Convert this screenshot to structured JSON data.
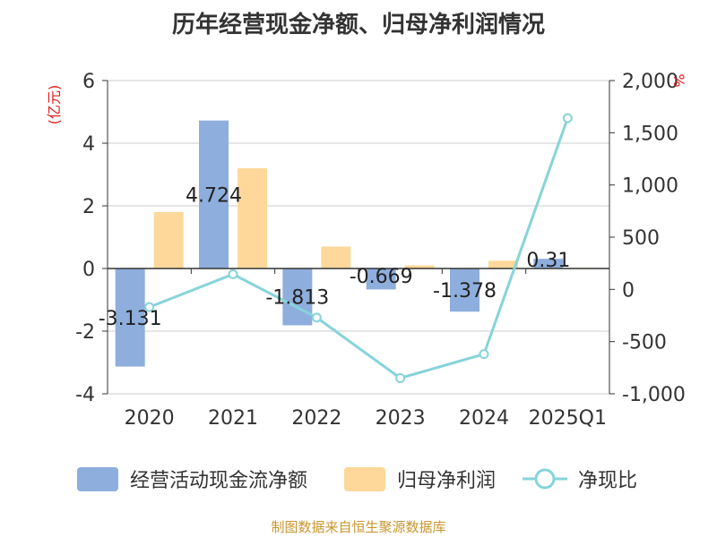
{
  "chart_data": {
    "type": "bar",
    "title": "历年经营现金净额、归母净利润情况",
    "categories": [
      "2020",
      "2021",
      "2022",
      "2023",
      "2024",
      "2025Q1"
    ],
    "y_left": {
      "unit": "(亿元)",
      "range": [
        -4,
        6
      ],
      "ticks": [
        "-4",
        "-2",
        "0",
        "2",
        "4",
        "6"
      ],
      "tick_values": [
        -4,
        -2,
        0,
        2,
        4,
        6
      ]
    },
    "y_right": {
      "unit": "%",
      "range": [
        -1000,
        2000
      ],
      "ticks": [
        "-1,000",
        "-500",
        "0",
        "500",
        "1,000",
        "1,500",
        "2,000"
      ],
      "tick_values": [
        -1000,
        -500,
        0,
        500,
        1000,
        1500,
        2000
      ]
    },
    "series": [
      {
        "name": "经营活动现金流净额",
        "type": "bar",
        "axis": "left",
        "color": "#8eaedd",
        "values": [
          -3.131,
          4.724,
          -1.813,
          -0.669,
          -1.378,
          0.31
        ],
        "labels": [
          "-3.131",
          "4.724",
          "-1.813",
          "-0.669",
          "-1.378",
          "0.31"
        ]
      },
      {
        "name": "归母净利润",
        "type": "bar",
        "axis": "left",
        "color": "#fdd89a",
        "values": [
          1.8,
          3.2,
          0.7,
          0.1,
          0.25,
          0.02
        ]
      },
      {
        "name": "净现比",
        "type": "line",
        "axis": "right",
        "color": "#86d4d9",
        "values": [
          -170,
          145,
          -270,
          -850,
          -620,
          1640
        ]
      }
    ],
    "grid": true,
    "legend": "bottom"
  },
  "footer": {
    "source": "制图数据来自恒生聚源数据库"
  }
}
